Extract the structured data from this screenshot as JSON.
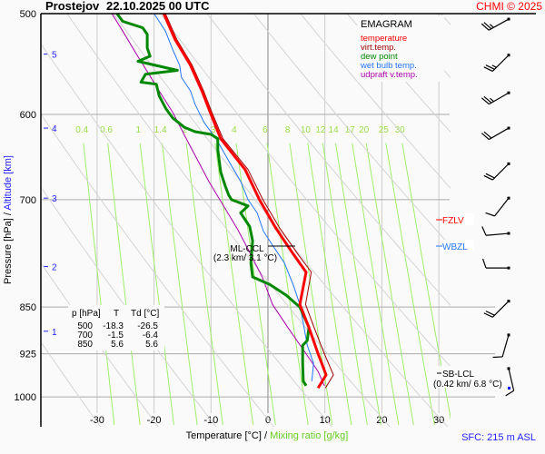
{
  "header": {
    "station": "Prostejov",
    "datetime": "22.10.2025 00 UTC",
    "credit": "CHMI © 2025"
  },
  "legend": {
    "title": "EMAGRAM",
    "items": [
      {
        "label": "temperature",
        "color": "#ff0000"
      },
      {
        "label": "virt.temp.",
        "color": "#a00000"
      },
      {
        "label": "dew point",
        "color": "#008800"
      },
      {
        "label": "wet bulb temp.",
        "color": "#2277ff"
      },
      {
        "label": "udpraft v.temp.",
        "color": "#aa00aa"
      }
    ]
  },
  "table": {
    "headers": [
      "p [hPa]",
      "T",
      "Td [°C]"
    ],
    "rows": [
      [
        "500",
        "-18.3",
        "-26.5"
      ],
      [
        "700",
        "-1.5",
        "-6.4"
      ],
      [
        "850",
        "5.6",
        "5.6"
      ]
    ]
  },
  "annotations": {
    "ml_ccl": {
      "label": "ML-CCL",
      "detail": "(2.3 km/ 3.1 °C)",
      "p": 760
    },
    "sb_lcl": {
      "label": "SB-LCL",
      "detail": "(0.42 km/ 6.8 °C)",
      "p": 963
    },
    "fzlv": {
      "label": "FZLV",
      "p": 720,
      "color": "#ff0000"
    },
    "wbzl": {
      "label": "WBZL",
      "p": 760,
      "color": "#2277ff"
    }
  },
  "footer": {
    "sfc": "SFC: 215 m ASL"
  },
  "chart_data": {
    "type": "line",
    "title": "EMAGRAM",
    "xlabel": "Temperature [°C]",
    "xlabel2": "Mixing ratio [g/kg]",
    "ylabel": "Pressure [hPa]",
    "ylabel2": "Altitude [km]",
    "separator": "/",
    "xlim": [
      -40,
      32
    ],
    "ylim": [
      500,
      1055
    ],
    "yscale": "log",
    "x_ticks": [
      "-30",
      "-20",
      "-10",
      "0",
      "10",
      "20",
      "30"
    ],
    "y_ticks": [
      "500",
      "600",
      "700",
      "850",
      "925",
      "1000"
    ],
    "altitude_ticks": [
      {
        "label": "5",
        "p": 538
      },
      {
        "label": "4",
        "p": 615
      },
      {
        "label": "3",
        "p": 698
      },
      {
        "label": "2",
        "p": 790
      },
      {
        "label": "1",
        "p": 888
      }
    ],
    "mixing_ratio_labels": [
      "0.4",
      "0.6",
      "1",
      "1.4",
      "2",
      "3",
      "4",
      "6",
      "8",
      "10",
      "12",
      "14",
      "17",
      "20",
      "25",
      "30"
    ],
    "grid": true,
    "legend_position": "top-right",
    "series": [
      {
        "name": "temperature",
        "color": "#ff0000",
        "p": [
          500,
          524,
          549,
          575,
          600,
          627,
          663,
          700,
          736,
          773,
          798,
          846,
          882,
          925,
          961,
          984
        ],
        "t": [
          -18.3,
          -16.3,
          -13.6,
          -11.6,
          -10.0,
          -8.3,
          -4.0,
          -1.5,
          1.3,
          4.5,
          6.7,
          5.6,
          7.2,
          8.8,
          10.2,
          8.8
        ]
      },
      {
        "name": "virt.temp.",
        "color": "#a00000",
        "p": [
          500,
          524,
          549,
          575,
          600,
          627,
          663,
          700,
          736,
          773,
          798,
          846,
          882,
          925,
          961,
          984
        ],
        "t": [
          -18.0,
          -16.0,
          -13.3,
          -11.3,
          -9.7,
          -7.9,
          -3.5,
          -0.9,
          2.0,
          5.3,
          7.6,
          6.6,
          8.1,
          9.9,
          11.5,
          10.1
        ]
      },
      {
        "name": "dew point",
        "color": "#008800",
        "p": [
          500,
          507,
          513,
          519,
          532,
          540,
          545,
          554,
          558,
          566,
          568,
          580,
          594,
          604,
          614,
          619,
          622,
          627,
          640,
          666,
          683,
          694,
          700,
          708,
          717,
          735,
          754,
          785,
          805,
          816,
          832,
          850,
          882,
          903,
          911,
          941,
          972,
          980
        ],
        "t": [
          -26.5,
          -25.5,
          -22.0,
          -21.2,
          -21.2,
          -20.7,
          -22.8,
          -15.9,
          -21.5,
          -22.3,
          -19.6,
          -19.1,
          -17.9,
          -16.7,
          -14.7,
          -12.8,
          -10.0,
          -8.8,
          -8.8,
          -8.3,
          -7.5,
          -6.9,
          -6.4,
          -3.5,
          -4.8,
          -3.2,
          -2.7,
          -3.0,
          -2.7,
          0.3,
          3.2,
          5.6,
          7.2,
          6.9,
          6.1,
          6.1,
          6.2,
          6.7
        ]
      },
      {
        "name": "wet bulb temp.",
        "color": "#2277ff",
        "p": [
          500,
          516,
          534,
          549,
          561,
          575,
          589,
          609,
          627,
          655,
          677,
          700,
          717,
          741,
          760,
          785,
          818,
          846,
          911,
          941,
          972
        ],
        "t": [
          -20.0,
          -18.0,
          -16.7,
          -15.5,
          -15.2,
          -13.6,
          -12.8,
          -11.2,
          -9.1,
          -6.7,
          -4.8,
          -3.5,
          -1.9,
          -0.8,
          0.8,
          2.9,
          4.5,
          5.6,
          6.9,
          8.0,
          7.7
        ]
      },
      {
        "name": "udpraft v.temp.",
        "color": "#aa00aa",
        "p": [
          500,
          516,
          538,
          556,
          575,
          598,
          625,
          677,
          739,
          758,
          805,
          846,
          882,
          925,
          955,
          980
        ],
        "t": [
          -27.4,
          -25.5,
          -23.1,
          -21.1,
          -19.1,
          -16.7,
          -14.5,
          -10.4,
          -5.3,
          -4.0,
          -1.0,
          0.8,
          3.5,
          6.7,
          8.8,
          9.9
        ]
      }
    ],
    "wind": [
      {
        "p": 505,
        "dir": 241,
        "kt": 25
      },
      {
        "p": 539,
        "dir": 225,
        "kt": 25
      },
      {
        "p": 577,
        "dir": 240,
        "kt": 25
      },
      {
        "p": 615,
        "dir": 240,
        "kt": 20
      },
      {
        "p": 656,
        "dir": 225,
        "kt": 20
      },
      {
        "p": 698,
        "dir": 218,
        "kt": 10
      },
      {
        "p": 744,
        "dir": 265,
        "kt": 10
      },
      {
        "p": 792,
        "dir": 270,
        "kt": 10
      },
      {
        "p": 841,
        "dir": 225,
        "kt": 20
      },
      {
        "p": 894,
        "dir": 196,
        "kt": 10
      },
      {
        "p": 950,
        "dir": 167,
        "kt": 10
      }
    ]
  }
}
